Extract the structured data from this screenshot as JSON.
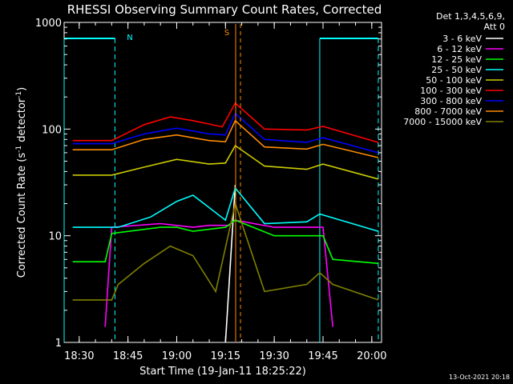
{
  "chart_data": {
    "type": "line",
    "title": "RHESSI Observing Summary Count Rates, Corrected",
    "xlabel": "Start Time (19-Jan-11 18:25:22)",
    "ylabel": "Corrected Count Rate (s⁻¹ detector⁻¹)",
    "ylabel_main": "Corrected Count Rate (s",
    "ylabel_sup1": "-1",
    "ylabel_mid": " detector",
    "ylabel_sup2": "-1",
    "ylabel_end": ")",
    "yscale": "log",
    "ylim": [
      1,
      1000
    ],
    "xlim": [
      "18:25:22",
      "20:03:00"
    ],
    "x_ticks": [
      "18:30",
      "18:45",
      "19:00",
      "19:15",
      "19:30",
      "19:45",
      "20:00"
    ],
    "y_ticks": [
      "1",
      "10",
      "100",
      "1000"
    ],
    "legend_position": "right",
    "legend_header": [
      "Det 1,3,4,5,6,9,",
      "Att 0"
    ],
    "timestamp": "13-Oct-2021 20:18",
    "series": [
      {
        "name": "3 - 6 keV",
        "color": "#ffffff",
        "points": [
          [
            "19:15",
            1.0
          ],
          [
            "19:18",
            30
          ]
        ]
      },
      {
        "name": "6 - 12 keV",
        "color": "#ff00ff",
        "points": [
          [
            "18:38",
            1.4
          ],
          [
            "18:40",
            12
          ],
          [
            "18:55",
            13
          ],
          [
            "19:05",
            12
          ],
          [
            "19:10",
            12.5
          ],
          [
            "19:16",
            12.5
          ],
          [
            "19:18",
            14
          ],
          [
            "19:30",
            12
          ],
          [
            "19:45",
            12
          ],
          [
            "19:48",
            1.4
          ]
        ]
      },
      {
        "name": "12 - 25 keV",
        "color": "#00ff00",
        "points": [
          [
            "18:28",
            5.7
          ],
          [
            "18:38",
            5.7
          ],
          [
            "18:40",
            10.5
          ],
          [
            "18:55",
            12
          ],
          [
            "19:00",
            12
          ],
          [
            "19:05",
            11
          ],
          [
            "19:15",
            12
          ],
          [
            "19:18",
            14
          ],
          [
            "19:30",
            10
          ],
          [
            "19:45",
            10
          ],
          [
            "19:48",
            6
          ],
          [
            "20:02",
            5.5
          ]
        ]
      },
      {
        "name": "25 - 50 keV",
        "color": "#00ffff",
        "points": [
          [
            "18:28",
            12
          ],
          [
            "18:42",
            12
          ],
          [
            "18:52",
            15
          ],
          [
            "19:00",
            21
          ],
          [
            "19:05",
            24
          ],
          [
            "19:15",
            14
          ],
          [
            "19:18",
            28
          ],
          [
            "19:27",
            13
          ],
          [
            "19:40",
            13.5
          ],
          [
            "19:44",
            16
          ],
          [
            "20:02",
            11
          ]
        ]
      },
      {
        "name": "50 - 100 keV",
        "color": "#cccc00",
        "points": [
          [
            "18:28",
            37
          ],
          [
            "18:40",
            37
          ],
          [
            "18:50",
            44
          ],
          [
            "19:00",
            52
          ],
          [
            "19:10",
            47
          ],
          [
            "19:15",
            48
          ],
          [
            "19:18",
            70
          ],
          [
            "19:27",
            45
          ],
          [
            "19:40",
            42
          ],
          [
            "19:45",
            47
          ],
          [
            "20:02",
            34
          ]
        ]
      },
      {
        "name": "100 - 300 keV",
        "color": "#ff0000",
        "points": [
          [
            "18:28",
            78
          ],
          [
            "18:40",
            78
          ],
          [
            "18:50",
            110
          ],
          [
            "18:58",
            130
          ],
          [
            "19:05",
            120
          ],
          [
            "19:14",
            105
          ],
          [
            "19:18",
            175
          ],
          [
            "19:27",
            100
          ],
          [
            "19:40",
            98
          ],
          [
            "19:45",
            106
          ],
          [
            "20:02",
            75
          ]
        ]
      },
      {
        "name": "300 - 800 keV",
        "color": "#0000ff",
        "points": [
          [
            "18:28",
            73
          ],
          [
            "18:40",
            73
          ],
          [
            "18:50",
            90
          ],
          [
            "19:00",
            102
          ],
          [
            "19:10",
            90
          ],
          [
            "19:15",
            88
          ],
          [
            "19:18",
            140
          ],
          [
            "19:27",
            80
          ],
          [
            "19:40",
            75
          ],
          [
            "19:45",
            83
          ],
          [
            "20:02",
            60
          ]
        ]
      },
      {
        "name": "800 - 7000 keV",
        "color": "#ff8c00",
        "points": [
          [
            "18:28",
            64
          ],
          [
            "18:40",
            64
          ],
          [
            "18:50",
            80
          ],
          [
            "19:00",
            88
          ],
          [
            "19:10",
            78
          ],
          [
            "19:15",
            76
          ],
          [
            "19:18",
            120
          ],
          [
            "19:27",
            68
          ],
          [
            "19:40",
            65
          ],
          [
            "19:45",
            72
          ],
          [
            "20:02",
            54
          ]
        ]
      },
      {
        "name": "7000 - 15000 keV",
        "color": "#808000",
        "points": [
          [
            "18:28",
            2.5
          ],
          [
            "18:40",
            2.5
          ],
          [
            "18:42",
            3.5
          ],
          [
            "18:50",
            5.5
          ],
          [
            "18:58",
            8
          ],
          [
            "19:05",
            6.5
          ],
          [
            "19:12",
            3
          ],
          [
            "19:18",
            20
          ],
          [
            "19:27",
            3
          ],
          [
            "19:40",
            3.5
          ],
          [
            "19:44",
            4.5
          ],
          [
            "19:48",
            3.5
          ],
          [
            "20:02",
            2.5
          ]
        ]
      }
    ],
    "annotations": {
      "night_label": "N",
      "saa_label": "S",
      "night_intervals": [
        [
          "18:25:22",
          "18:41"
        ],
        [
          "19:44",
          "20:02"
        ]
      ]
    }
  }
}
